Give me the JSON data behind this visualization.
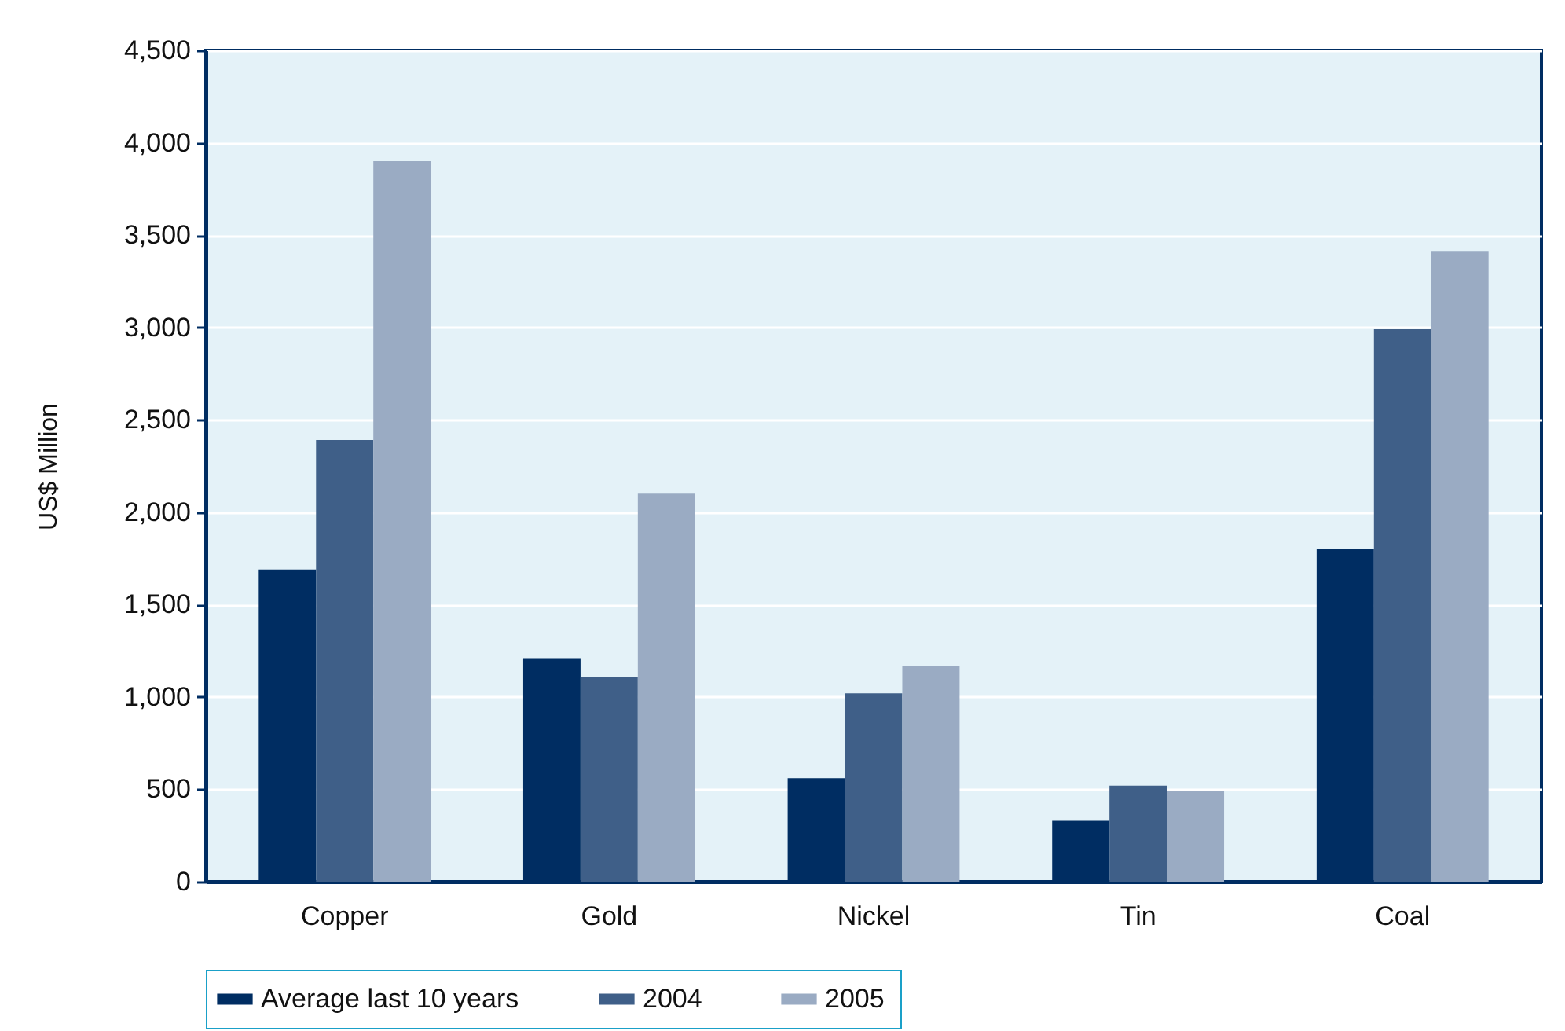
{
  "chart_data": {
    "type": "bar",
    "ylabel": "US$ Million",
    "categories": [
      "Copper",
      "Gold",
      "Nickel",
      "Tin",
      "Coal"
    ],
    "series": [
      {
        "name": "Average last 10 years",
        "color": "#002d62",
        "values": [
          1690,
          1210,
          560,
          330,
          1800
        ]
      },
      {
        "name": "2004",
        "color": "#3f5f88",
        "values": [
          2390,
          1110,
          1020,
          520,
          2990
        ]
      },
      {
        "name": "2005",
        "color": "#9aabc3",
        "values": [
          3900,
          2100,
          1170,
          490,
          3410
        ]
      }
    ],
    "ylim": [
      0,
      4500
    ],
    "yticks": [
      0,
      500,
      {
        "value": 1000,
        "label": "1,000"
      },
      {
        "value": 1500,
        "label": "1,500"
      },
      {
        "value": 2000,
        "label": "2,000"
      },
      {
        "value": 2500,
        "label": "2,500"
      },
      {
        "value": 3000,
        "label": "3,000"
      },
      {
        "value": 3500,
        "label": "3,500"
      },
      {
        "value": 4000,
        "label": "4,000"
      },
      {
        "value": 4500,
        "label": "4,500"
      }
    ],
    "grid": "y",
    "legend": "bottom"
  }
}
